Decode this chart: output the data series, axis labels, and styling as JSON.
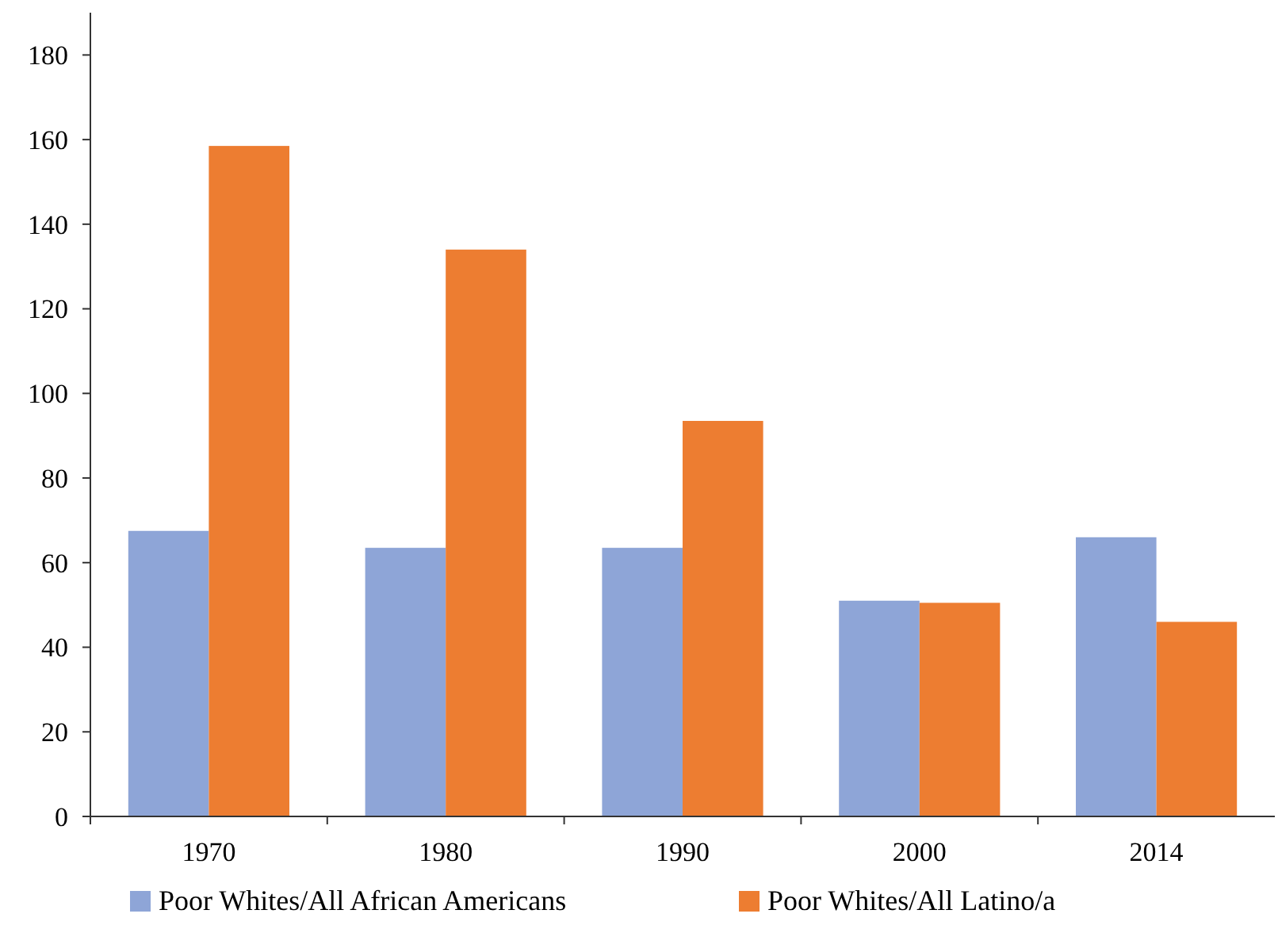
{
  "chart_data": {
    "type": "bar",
    "categories": [
      "1970",
      "1980",
      "1990",
      "2000",
      "2014"
    ],
    "series": [
      {
        "name": "Poor Whites/All African Americans",
        "color": "#8ea5d7",
        "values": [
          67.5,
          63.5,
          63.5,
          51,
          66
        ]
      },
      {
        "name": "Poor Whites/All Latino/a",
        "color": "#ed7d31",
        "values": [
          158.5,
          134,
          93.5,
          50.5,
          46
        ]
      }
    ],
    "ylim": [
      0,
      190
    ],
    "yticks": [
      0,
      20,
      40,
      60,
      80,
      100,
      120,
      140,
      160,
      180
    ],
    "grid": false,
    "legend": "bottom"
  }
}
